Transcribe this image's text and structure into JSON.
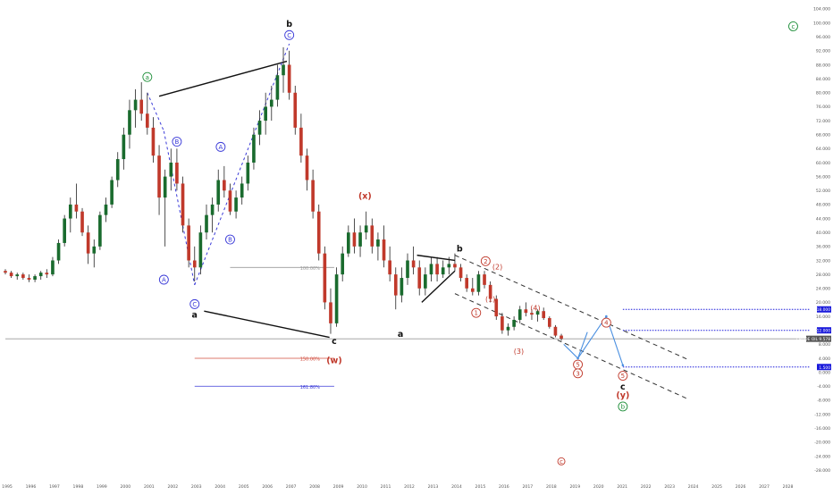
{
  "chart_data": {
    "type": "candlestick",
    "x_axis": {
      "ticks": [
        "1995",
        "1996",
        "1997",
        "1998",
        "1999",
        "2000",
        "2001",
        "2002",
        "2003",
        "2004",
        "2005",
        "2006",
        "2007",
        "2008",
        "2009",
        "2010",
        "2011",
        "2012",
        "2013",
        "2014",
        "2015",
        "2016",
        "2017",
        "2018",
        "2019",
        "2020",
        "2021",
        "2022",
        "2023",
        "2024",
        "2025",
        "2026",
        "2027",
        "2028"
      ],
      "range": [
        1995.0,
        2029.0
      ]
    },
    "y_axis": {
      "ticks": [
        "104.000",
        "100.000",
        "96.000",
        "92.000",
        "88.000",
        "84.000",
        "80.000",
        "76.000",
        "72.000",
        "68.000",
        "64.000",
        "60.000",
        "56.000",
        "52.000",
        "48.000",
        "44.000",
        "40.000",
        "36.000",
        "32.000",
        "28.000",
        "24.000",
        "20.000",
        "16.000",
        "12.000",
        "8.000",
        "4.000",
        "0.000",
        "-4.000",
        "-8.000",
        "-12.000",
        "-16.000",
        "-20.000",
        "-24.000",
        "-28.000"
      ],
      "range": [
        -29.5,
        105.0
      ],
      "position": "right",
      "price_labels": [
        {
          "text": "18.000",
          "value": 18.0,
          "color": "#1a1adb"
        },
        {
          "text": "12.000",
          "value": 12.0,
          "color": "#1a1adb"
        },
        {
          "text": "CRUDE OIL 9.578",
          "value": 9.578,
          "color": "#555555"
        },
        {
          "text": "1.500",
          "value": 1.5,
          "color": "#1a1adb"
        }
      ]
    },
    "grid": false,
    "candles": [
      {
        "t": 1995.0,
        "o": 29.0,
        "h": 29.5,
        "l": 28.0,
        "c": 28.5
      },
      {
        "t": 1995.25,
        "o": 28.5,
        "h": 29.0,
        "l": 27.0,
        "c": 27.5
      },
      {
        "t": 1995.5,
        "o": 27.5,
        "h": 28.5,
        "l": 26.5,
        "c": 28.0
      },
      {
        "t": 1995.75,
        "o": 28.0,
        "h": 28.5,
        "l": 26.5,
        "c": 27.0
      },
      {
        "t": 1996.0,
        "o": 27.0,
        "h": 28.0,
        "l": 25.8,
        "c": 26.5
      },
      {
        "t": 1996.25,
        "o": 26.5,
        "h": 28.0,
        "l": 25.8,
        "c": 27.5
      },
      {
        "t": 1996.5,
        "o": 27.5,
        "h": 29.0,
        "l": 26.5,
        "c": 28.5
      },
      {
        "t": 1996.75,
        "o": 28.5,
        "h": 29.5,
        "l": 27.0,
        "c": 28.0
      },
      {
        "t": 1997.0,
        "o": 28.0,
        "h": 33.0,
        "l": 27.5,
        "c": 32.0
      },
      {
        "t": 1997.25,
        "o": 32.0,
        "h": 38.0,
        "l": 31.0,
        "c": 37.0
      },
      {
        "t": 1997.5,
        "o": 37.0,
        "h": 45.0,
        "l": 36.0,
        "c": 44.0
      },
      {
        "t": 1997.75,
        "o": 44.0,
        "h": 50.0,
        "l": 40.0,
        "c": 48.0
      },
      {
        "t": 1998.0,
        "o": 48.0,
        "h": 54.0,
        "l": 44.0,
        "c": 46.0
      },
      {
        "t": 1998.25,
        "o": 46.0,
        "h": 47.0,
        "l": 39.0,
        "c": 40.0
      },
      {
        "t": 1998.5,
        "o": 40.0,
        "h": 42.0,
        "l": 31.0,
        "c": 34.0
      },
      {
        "t": 1998.75,
        "o": 34.0,
        "h": 38.0,
        "l": 30.0,
        "c": 36.0
      },
      {
        "t": 1999.0,
        "o": 36.0,
        "h": 46.0,
        "l": 35.0,
        "c": 45.0
      },
      {
        "t": 1999.25,
        "o": 45.0,
        "h": 50.0,
        "l": 43.0,
        "c": 48.0
      },
      {
        "t": 1999.5,
        "o": 48.0,
        "h": 56.0,
        "l": 47.0,
        "c": 55.0
      },
      {
        "t": 1999.75,
        "o": 55.0,
        "h": 63.0,
        "l": 53.0,
        "c": 61.0
      },
      {
        "t": 2000.0,
        "o": 61.0,
        "h": 70.0,
        "l": 58.0,
        "c": 68.0
      },
      {
        "t": 2000.25,
        "o": 68.0,
        "h": 78.0,
        "l": 64.0,
        "c": 75.0
      },
      {
        "t": 2000.5,
        "o": 75.0,
        "h": 81.0,
        "l": 70.0,
        "c": 78.0
      },
      {
        "t": 2000.75,
        "o": 78.0,
        "h": 83.0,
        "l": 72.0,
        "c": 74.0
      },
      {
        "t": 2001.0,
        "o": 74.0,
        "h": 80.0,
        "l": 68.0,
        "c": 70.0
      },
      {
        "t": 2001.25,
        "o": 70.0,
        "h": 73.0,
        "l": 60.0,
        "c": 62.0
      },
      {
        "t": 2001.5,
        "o": 62.0,
        "h": 65.0,
        "l": 45.0,
        "c": 50.0
      },
      {
        "t": 2001.75,
        "o": 50.0,
        "h": 58.0,
        "l": 36.0,
        "c": 56.0
      },
      {
        "t": 2002.0,
        "o": 56.0,
        "h": 64.0,
        "l": 52.0,
        "c": 60.0
      },
      {
        "t": 2002.25,
        "o": 60.0,
        "h": 64.0,
        "l": 52.0,
        "c": 54.0
      },
      {
        "t": 2002.5,
        "o": 54.0,
        "h": 56.0,
        "l": 40.0,
        "c": 42.0
      },
      {
        "t": 2002.75,
        "o": 42.0,
        "h": 44.0,
        "l": 30.0,
        "c": 32.0
      },
      {
        "t": 2003.0,
        "o": 32.0,
        "h": 36.0,
        "l": 26.0,
        "c": 30.0
      },
      {
        "t": 2003.25,
        "o": 30.0,
        "h": 42.0,
        "l": 28.0,
        "c": 40.0
      },
      {
        "t": 2003.5,
        "o": 40.0,
        "h": 48.0,
        "l": 38.0,
        "c": 45.0
      },
      {
        "t": 2003.75,
        "o": 45.0,
        "h": 50.0,
        "l": 40.0,
        "c": 48.0
      },
      {
        "t": 2004.0,
        "o": 48.0,
        "h": 58.0,
        "l": 46.0,
        "c": 55.0
      },
      {
        "t": 2004.25,
        "o": 55.0,
        "h": 59.0,
        "l": 50.0,
        "c": 52.0
      },
      {
        "t": 2004.5,
        "o": 52.0,
        "h": 54.0,
        "l": 45.0,
        "c": 46.0
      },
      {
        "t": 2004.75,
        "o": 46.0,
        "h": 52.0,
        "l": 44.0,
        "c": 50.0
      },
      {
        "t": 2005.0,
        "o": 50.0,
        "h": 56.0,
        "l": 48.0,
        "c": 54.0
      },
      {
        "t": 2005.25,
        "o": 54.0,
        "h": 62.0,
        "l": 52.0,
        "c": 60.0
      },
      {
        "t": 2005.5,
        "o": 60.0,
        "h": 70.0,
        "l": 58.0,
        "c": 68.0
      },
      {
        "t": 2005.75,
        "o": 68.0,
        "h": 75.0,
        "l": 65.0,
        "c": 72.0
      },
      {
        "t": 2006.0,
        "o": 72.0,
        "h": 80.0,
        "l": 68.0,
        "c": 76.0
      },
      {
        "t": 2006.25,
        "o": 76.0,
        "h": 82.0,
        "l": 72.0,
        "c": 78.0
      },
      {
        "t": 2006.5,
        "o": 78.0,
        "h": 88.0,
        "l": 76.0,
        "c": 85.0
      },
      {
        "t": 2006.75,
        "o": 85.0,
        "h": 93.0,
        "l": 80.0,
        "c": 88.0
      },
      {
        "t": 2007.0,
        "o": 88.0,
        "h": 92.0,
        "l": 78.0,
        "c": 80.0
      },
      {
        "t": 2007.25,
        "o": 80.0,
        "h": 82.0,
        "l": 68.0,
        "c": 70.0
      },
      {
        "t": 2007.5,
        "o": 70.0,
        "h": 74.0,
        "l": 60.0,
        "c": 62.0
      },
      {
        "t": 2007.75,
        "o": 62.0,
        "h": 64.0,
        "l": 52.0,
        "c": 55.0
      },
      {
        "t": 2008.0,
        "o": 55.0,
        "h": 58.0,
        "l": 44.0,
        "c": 46.0
      },
      {
        "t": 2008.25,
        "o": 46.0,
        "h": 48.0,
        "l": 32.0,
        "c": 34.0
      },
      {
        "t": 2008.5,
        "o": 34.0,
        "h": 36.0,
        "l": 18.0,
        "c": 20.0
      },
      {
        "t": 2008.75,
        "o": 20.0,
        "h": 24.0,
        "l": 11.0,
        "c": 14.0
      },
      {
        "t": 2009.0,
        "o": 14.0,
        "h": 30.0,
        "l": 13.0,
        "c": 28.0
      },
      {
        "t": 2009.25,
        "o": 28.0,
        "h": 36.0,
        "l": 26.0,
        "c": 34.0
      },
      {
        "t": 2009.5,
        "o": 34.0,
        "h": 42.0,
        "l": 33.0,
        "c": 40.0
      },
      {
        "t": 2009.75,
        "o": 40.0,
        "h": 44.0,
        "l": 34.0,
        "c": 36.0
      },
      {
        "t": 2010.0,
        "o": 36.0,
        "h": 42.0,
        "l": 33.0,
        "c": 40.0
      },
      {
        "t": 2010.25,
        "o": 40.0,
        "h": 46.0,
        "l": 38.0,
        "c": 42.0
      },
      {
        "t": 2010.5,
        "o": 42.0,
        "h": 44.0,
        "l": 34.0,
        "c": 36.0
      },
      {
        "t": 2010.75,
        "o": 36.0,
        "h": 40.0,
        "l": 32.0,
        "c": 38.0
      },
      {
        "t": 2011.0,
        "o": 38.0,
        "h": 42.0,
        "l": 30.0,
        "c": 32.0
      },
      {
        "t": 2011.25,
        "o": 32.0,
        "h": 36.0,
        "l": 26.0,
        "c": 28.0
      },
      {
        "t": 2011.5,
        "o": 28.0,
        "h": 30.0,
        "l": 18.0,
        "c": 22.0
      },
      {
        "t": 2011.75,
        "o": 22.0,
        "h": 30.0,
        "l": 20.0,
        "c": 27.0
      },
      {
        "t": 2012.0,
        "o": 27.0,
        "h": 34.0,
        "l": 25.0,
        "c": 32.0
      },
      {
        "t": 2012.25,
        "o": 32.0,
        "h": 36.0,
        "l": 28.0,
        "c": 30.0
      },
      {
        "t": 2012.5,
        "o": 30.0,
        "h": 32.0,
        "l": 22.0,
        "c": 24.0
      },
      {
        "t": 2012.75,
        "o": 24.0,
        "h": 30.0,
        "l": 22.0,
        "c": 28.0
      },
      {
        "t": 2013.0,
        "o": 28.0,
        "h": 33.0,
        "l": 26.0,
        "c": 31.0
      },
      {
        "t": 2013.25,
        "o": 31.0,
        "h": 33.0,
        "l": 26.0,
        "c": 28.0
      },
      {
        "t": 2013.5,
        "o": 28.0,
        "h": 32.0,
        "l": 27.0,
        "c": 30.0
      },
      {
        "t": 2013.75,
        "o": 30.0,
        "h": 33.0,
        "l": 28.0,
        "c": 31.0
      },
      {
        "t": 2014.0,
        "o": 31.0,
        "h": 34.0,
        "l": 29.0,
        "c": 30.0
      },
      {
        "t": 2014.25,
        "o": 30.0,
        "h": 31.0,
        "l": 26.0,
        "c": 27.0
      },
      {
        "t": 2014.5,
        "o": 27.0,
        "h": 28.0,
        "l": 23.0,
        "c": 24.0
      },
      {
        "t": 2014.75,
        "o": 24.0,
        "h": 27.0,
        "l": 22.0,
        "c": 23.0
      },
      {
        "t": 2015.0,
        "o": 23.0,
        "h": 29.0,
        "l": 22.0,
        "c": 28.0
      },
      {
        "t": 2015.25,
        "o": 28.0,
        "h": 29.0,
        "l": 24.0,
        "c": 25.0
      },
      {
        "t": 2015.5,
        "o": 25.0,
        "h": 26.0,
        "l": 20.0,
        "c": 21.0
      },
      {
        "t": 2015.75,
        "o": 21.0,
        "h": 22.0,
        "l": 15.0,
        "c": 16.0
      },
      {
        "t": 2016.0,
        "o": 16.0,
        "h": 17.0,
        "l": 11.0,
        "c": 12.0
      },
      {
        "t": 2016.25,
        "o": 12.0,
        "h": 14.0,
        "l": 10.5,
        "c": 13.0
      },
      {
        "t": 2016.5,
        "o": 13.0,
        "h": 16.0,
        "l": 12.0,
        "c": 15.0
      },
      {
        "t": 2016.75,
        "o": 15.0,
        "h": 19.0,
        "l": 14.0,
        "c": 18.0
      },
      {
        "t": 2017.0,
        "o": 18.0,
        "h": 20.0,
        "l": 16.0,
        "c": 17.0
      },
      {
        "t": 2017.25,
        "o": 17.0,
        "h": 18.0,
        "l": 15.0,
        "c": 16.5
      },
      {
        "t": 2017.5,
        "o": 16.5,
        "h": 18.0,
        "l": 14.5,
        "c": 17.5
      },
      {
        "t": 2017.75,
        "o": 17.5,
        "h": 18.5,
        "l": 15.0,
        "c": 15.5
      },
      {
        "t": 2018.0,
        "o": 15.5,
        "h": 16.0,
        "l": 12.5,
        "c": 13.0
      },
      {
        "t": 2018.25,
        "o": 13.0,
        "h": 13.5,
        "l": 10.0,
        "c": 10.5
      },
      {
        "t": 2018.5,
        "o": 10.5,
        "h": 11.0,
        "l": 9.0,
        "c": 9.578
      }
    ],
    "annotations": [
      {
        "text": "a",
        "x": 2001.0,
        "y": 84.5,
        "color": "#1f8f3a",
        "style": "circle"
      },
      {
        "text": "C",
        "x": 2007.0,
        "y": 96.5,
        "color": "#3a3ad8",
        "style": "circle"
      },
      {
        "text": "b",
        "x": 2007.0,
        "y": 99.8,
        "color": "#111111",
        "style": "bold"
      },
      {
        "text": "B",
        "x": 2002.25,
        "y": 66.0,
        "color": "#3a3ad8",
        "style": "circle"
      },
      {
        "text": "A",
        "x": 2004.1,
        "y": 64.5,
        "color": "#3a3ad8",
        "style": "circle"
      },
      {
        "text": "B",
        "x": 2004.5,
        "y": 38.0,
        "color": "#3a3ad8",
        "style": "circle"
      },
      {
        "text": "A",
        "x": 2001.7,
        "y": 26.5,
        "color": "#3a3ad8",
        "style": "circle"
      },
      {
        "text": "C",
        "x": 2003.0,
        "y": 19.5,
        "color": "#3a3ad8",
        "style": "circle"
      },
      {
        "text": "a",
        "x": 2003.0,
        "y": 16.5,
        "color": "#111111",
        "style": "bold"
      },
      {
        "text": "(x)",
        "x": 2010.2,
        "y": 50.5,
        "color": "#c0392b",
        "style": "bold"
      },
      {
        "text": "c",
        "x": 2008.9,
        "y": 9.0,
        "color": "#111111",
        "style": "bold"
      },
      {
        "text": "(w)",
        "x": 2008.9,
        "y": 3.5,
        "color": "#c0392b",
        "style": "bold"
      },
      {
        "text": "a",
        "x": 2011.7,
        "y": 11.0,
        "color": "#111111",
        "style": "bold"
      },
      {
        "text": "b",
        "x": 2014.2,
        "y": 35.5,
        "color": "#111111",
        "style": "bold"
      },
      {
        "text": "2",
        "x": 2015.3,
        "y": 31.8,
        "color": "#c0392b",
        "style": "circle"
      },
      {
        "text": "(2)",
        "x": 2015.8,
        "y": 30.2,
        "color": "#c0392b",
        "style": "plain"
      },
      {
        "text": "(1)",
        "x": 2015.5,
        "y": 21.0,
        "color": "#c0392b",
        "style": "plain"
      },
      {
        "text": "1",
        "x": 2014.9,
        "y": 17.0,
        "color": "#c0392b",
        "style": "circle"
      },
      {
        "text": "(4)",
        "x": 2017.4,
        "y": 18.5,
        "color": "#c0392b",
        "style": "plain"
      },
      {
        "text": "(3)",
        "x": 2016.7,
        "y": 6.0,
        "color": "#c0392b",
        "style": "plain"
      },
      {
        "text": "4",
        "x": 2020.4,
        "y": 14.2,
        "color": "#c0392b",
        "style": "circle"
      },
      {
        "text": "5",
        "x": 2019.2,
        "y": 2.2,
        "color": "#c0392b",
        "style": "circle"
      },
      {
        "text": "3",
        "x": 2019.2,
        "y": -0.3,
        "color": "#c0392b",
        "style": "circle"
      },
      {
        "text": "5",
        "x": 2021.1,
        "y": -1.0,
        "color": "#c0392b",
        "style": "circle"
      },
      {
        "text": "c",
        "x": 2021.1,
        "y": -4.0,
        "color": "#111111",
        "style": "bold"
      },
      {
        "text": "(y)",
        "x": 2021.1,
        "y": -6.5,
        "color": "#c0392b",
        "style": "bold"
      },
      {
        "text": "b",
        "x": 2021.1,
        "y": -9.8,
        "color": "#1f8f3a",
        "style": "circle"
      },
      {
        "text": "c",
        "x": 2028.3,
        "y": 99.0,
        "color": "#1f8f3a",
        "style": "circle"
      },
      {
        "text": "c",
        "x": 2018.5,
        "y": -25.5,
        "color": "#c0392b",
        "style": "circle-small"
      }
    ],
    "fib_levels": [
      {
        "label": "100.00%",
        "value": 30.0,
        "x1": 2004.5,
        "x2": 2008.9,
        "color": "#9a9a9a"
      },
      {
        "label": "150.00%",
        "value": 4.0,
        "x1": 2003.0,
        "x2": 2008.9,
        "color": "#d04b3c"
      },
      {
        "label": "161.80%",
        "value": -4.0,
        "x1": 2003.0,
        "x2": 2008.9,
        "color": "#3a3ad8"
      }
    ],
    "trend_lines": [
      {
        "from": [
          2001.5,
          79.0
        ],
        "to": [
          2006.9,
          89.0
        ],
        "color": "#111111",
        "style": "solid"
      },
      {
        "from": [
          2003.4,
          17.5
        ],
        "to": [
          2008.7,
          10.0
        ],
        "color": "#111111",
        "style": "solid"
      },
      {
        "from": [
          2012.4,
          33.5
        ],
        "to": [
          2014.0,
          32.0
        ],
        "color": "#111111",
        "style": "solid"
      },
      {
        "from": [
          2012.6,
          20.0
        ],
        "to": [
          2014.0,
          29.0
        ],
        "color": "#111111",
        "style": "solid"
      },
      {
        "from": [
          2014.0,
          33.5
        ],
        "to": [
          2023.9,
          3.5
        ],
        "color": "#333333",
        "style": "dashed"
      },
      {
        "from": [
          2014.0,
          22.5
        ],
        "to": [
          2023.9,
          -7.8
        ],
        "color": "#333333",
        "style": "dashed"
      },
      {
        "from": [
          2001.0,
          80.0
        ],
        "to": [
          2001.7,
          69.0
        ],
        "color": "#3a3ad8",
        "style": "dashed"
      },
      {
        "from": [
          2001.7,
          69.0
        ],
        "to": [
          2003.0,
          25.0
        ],
        "color": "#3a3ad8",
        "style": "dashed"
      },
      {
        "from": [
          2003.0,
          25.0
        ],
        "to": [
          2007.0,
          94.0
        ],
        "color": "#3a3ad8",
        "style": "dashed"
      }
    ],
    "projection_path": [
      [
        2018.6,
        8.0
      ],
      [
        2019.2,
        4.0
      ],
      [
        2020.4,
        16.0
      ],
      [
        2021.1,
        2.0
      ]
    ],
    "projection_branch": [
      [
        2019.2,
        4.0
      ],
      [
        2019.6,
        11.5
      ]
    ],
    "h_levels": [
      {
        "value": 18.0,
        "from": 2021.1,
        "color": "#1a1adb"
      },
      {
        "value": 12.0,
        "from": 2021.1,
        "color": "#1a1adb"
      },
      {
        "value": 1.5,
        "from": 2021.1,
        "color": "#1a1adb"
      }
    ],
    "colors": {
      "up": "#1a6b2e",
      "down": "#c0392b",
      "wick": "#222222",
      "axis_text": "#555555",
      "projection": "#4a8fe0",
      "last_price_line": "#999999"
    }
  }
}
